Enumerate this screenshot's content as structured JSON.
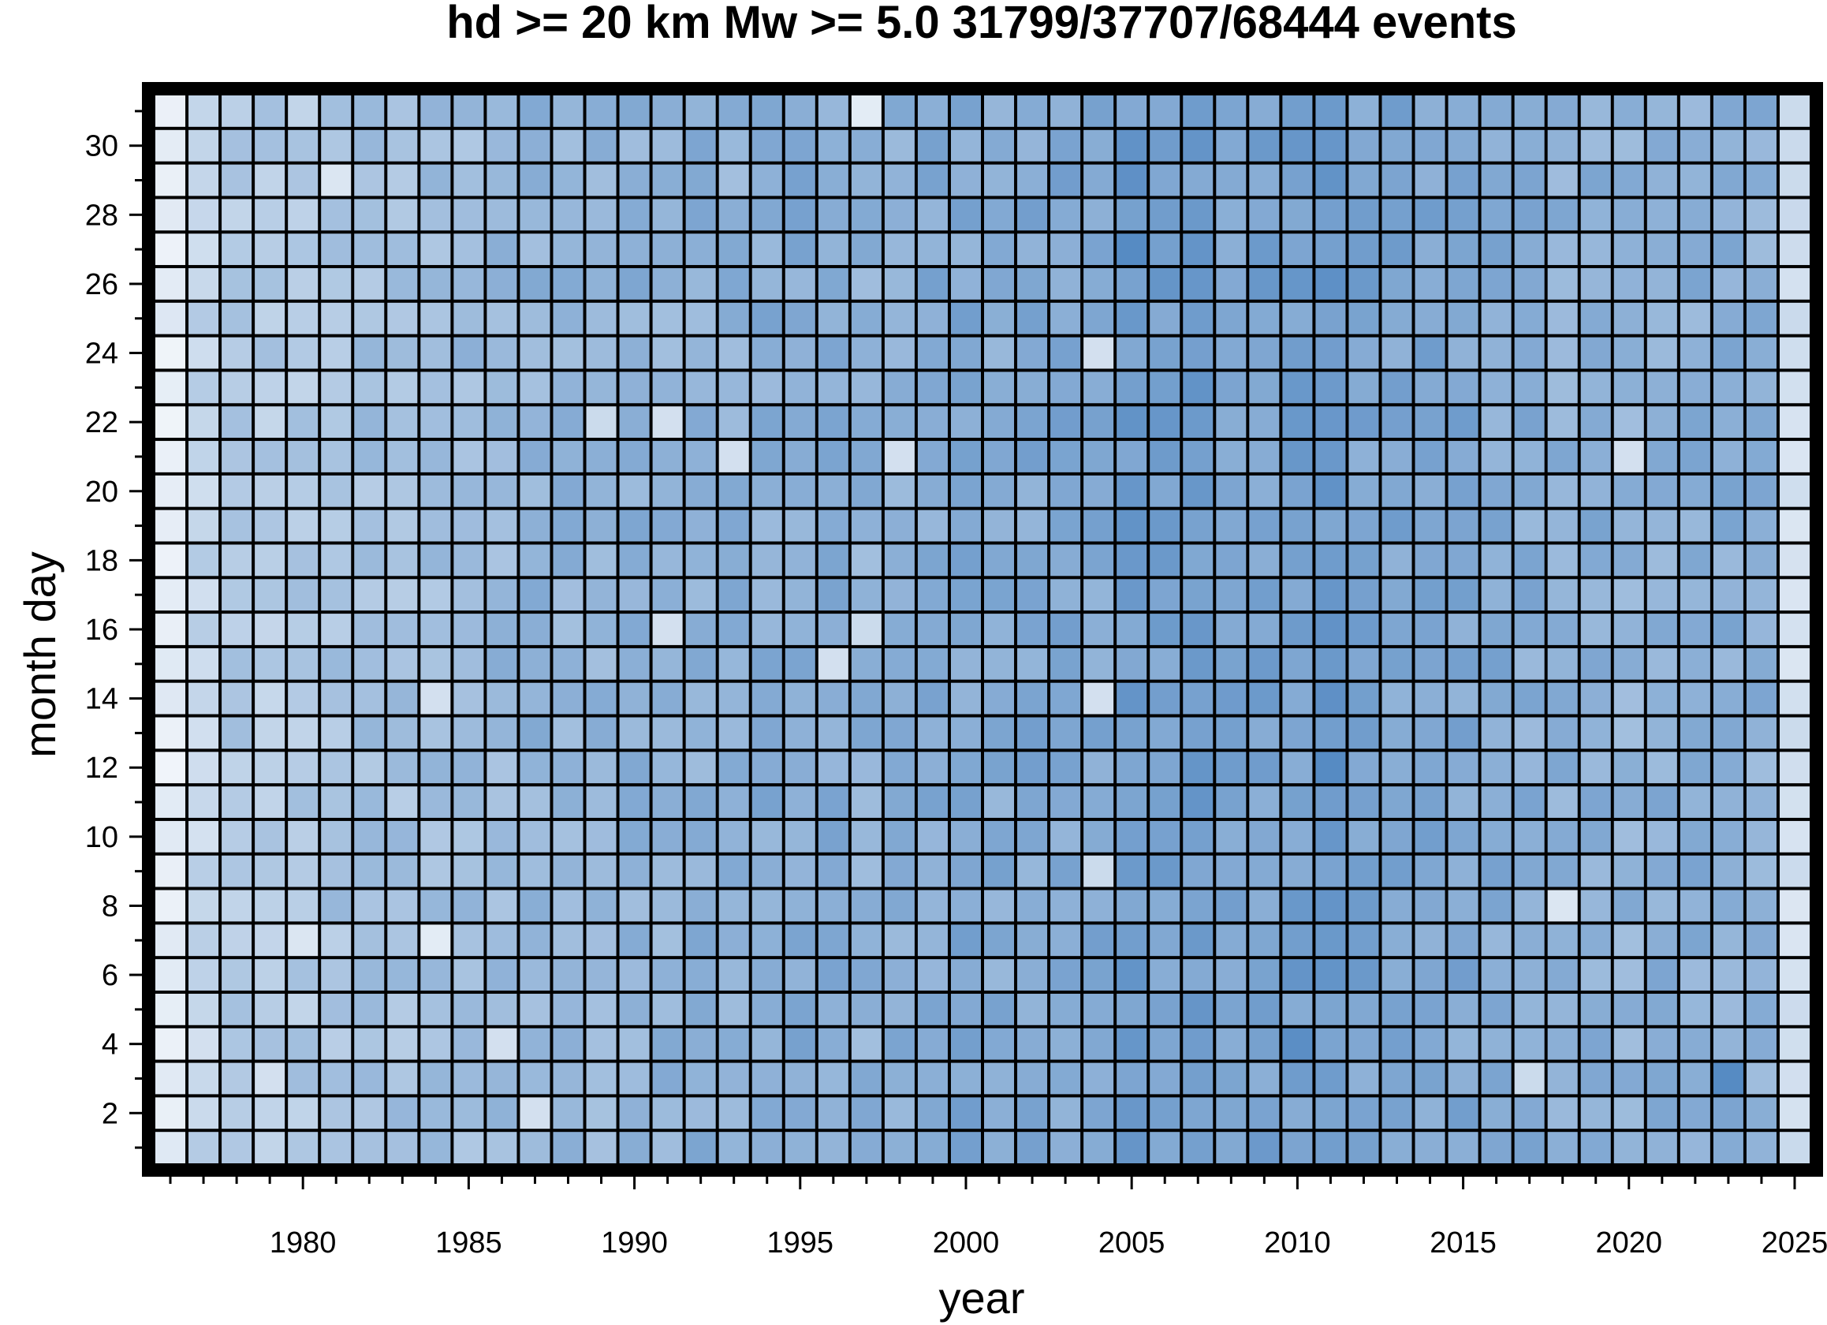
{
  "chart_data": {
    "type": "heatmap",
    "title": "hd >= 20 km   Mw >= 5.0   31799/37707/68444 events",
    "xlabel": "year",
    "ylabel": "month day",
    "x_range": [
      1976,
      2025
    ],
    "y_range": [
      1,
      31
    ],
    "x_ticks": [
      "1980",
      "1985",
      "1990",
      "1995",
      "2000",
      "2005",
      "2010",
      "2015",
      "2020",
      "2025"
    ],
    "y_ticks": [
      "2",
      "4",
      "6",
      "8",
      "10",
      "12",
      "14",
      "16",
      "18",
      "20",
      "22",
      "24",
      "26",
      "28",
      "30"
    ],
    "color_scale": {
      "low": "#f4f7fb",
      "high": "#4e85c0"
    },
    "cell_border_color": "#000000",
    "frame_color": "#000000",
    "relative_intensity_by_year": {
      "1976": 0.08,
      "1977": 0.3,
      "1978": 0.4,
      "1979": 0.38,
      "1980": 0.4,
      "1981": 0.45,
      "1982": 0.48,
      "1983": 0.47,
      "1984": 0.5,
      "1985": 0.52,
      "1986": 0.55,
      "1987": 0.58,
      "1988": 0.58,
      "1989": 0.57,
      "1990": 0.6,
      "1991": 0.58,
      "1992": 0.62,
      "1993": 0.6,
      "1994": 0.64,
      "1995": 0.66,
      "1996": 0.65,
      "1997": 0.6,
      "1998": 0.63,
      "1999": 0.66,
      "2000": 0.68,
      "2001": 0.66,
      "2002": 0.67,
      "2003": 0.69,
      "2004": 0.68,
      "2005": 0.78,
      "2006": 0.76,
      "2007": 0.77,
      "2008": 0.72,
      "2009": 0.74,
      "2010": 0.76,
      "2011": 0.8,
      "2012": 0.72,
      "2013": 0.7,
      "2014": 0.71,
      "2015": 0.69,
      "2016": 0.66,
      "2017": 0.64,
      "2018": 0.62,
      "2019": 0.63,
      "2020": 0.6,
      "2021": 0.62,
      "2022": 0.63,
      "2023": 0.64,
      "2024": 0.62,
      "2025": 0.2
    },
    "notable_cells": [
      {
        "year": 1997,
        "day": 31,
        "intensity": 0.1
      },
      {
        "year": 1981,
        "day": 29,
        "intensity": 0.15
      },
      {
        "year": 2004,
        "day": 24,
        "intensity": 0.2
      },
      {
        "year": 1993,
        "day": 21,
        "intensity": 0.2
      },
      {
        "year": 1998,
        "day": 21,
        "intensity": 0.2
      },
      {
        "year": 1991,
        "day": 22,
        "intensity": 0.2
      },
      {
        "year": 1989,
        "day": 22,
        "intensity": 0.25
      },
      {
        "year": 2020,
        "day": 21,
        "intensity": 0.2
      },
      {
        "year": 1991,
        "day": 16,
        "intensity": 0.2
      },
      {
        "year": 1997,
        "day": 16,
        "intensity": 0.25
      },
      {
        "year": 1996,
        "day": 15,
        "intensity": 0.2
      },
      {
        "year": 2004,
        "day": 14,
        "intensity": 0.2
      },
      {
        "year": 1984,
        "day": 14,
        "intensity": 0.2
      },
      {
        "year": 2004,
        "day": 9,
        "intensity": 0.25
      },
      {
        "year": 2018,
        "day": 8,
        "intensity": 0.15
      },
      {
        "year": 1984,
        "day": 7,
        "intensity": 0.1
      },
      {
        "year": 1980,
        "day": 7,
        "intensity": 0.15
      },
      {
        "year": 1986,
        "day": 4,
        "intensity": 0.2
      },
      {
        "year": 1979,
        "day": 3,
        "intensity": 0.2
      },
      {
        "year": 1987,
        "day": 2,
        "intensity": 0.2
      },
      {
        "year": 2017,
        "day": 3,
        "intensity": 0.25
      },
      {
        "year": 2023,
        "day": 3,
        "intensity": 0.95
      },
      {
        "year": 2005,
        "day": 27,
        "intensity": 0.95
      },
      {
        "year": 2005,
        "day": 29,
        "intensity": 0.9
      },
      {
        "year": 2011,
        "day": 12,
        "intensity": 0.95
      },
      {
        "year": 2010,
        "day": 4,
        "intensity": 0.92
      }
    ]
  }
}
